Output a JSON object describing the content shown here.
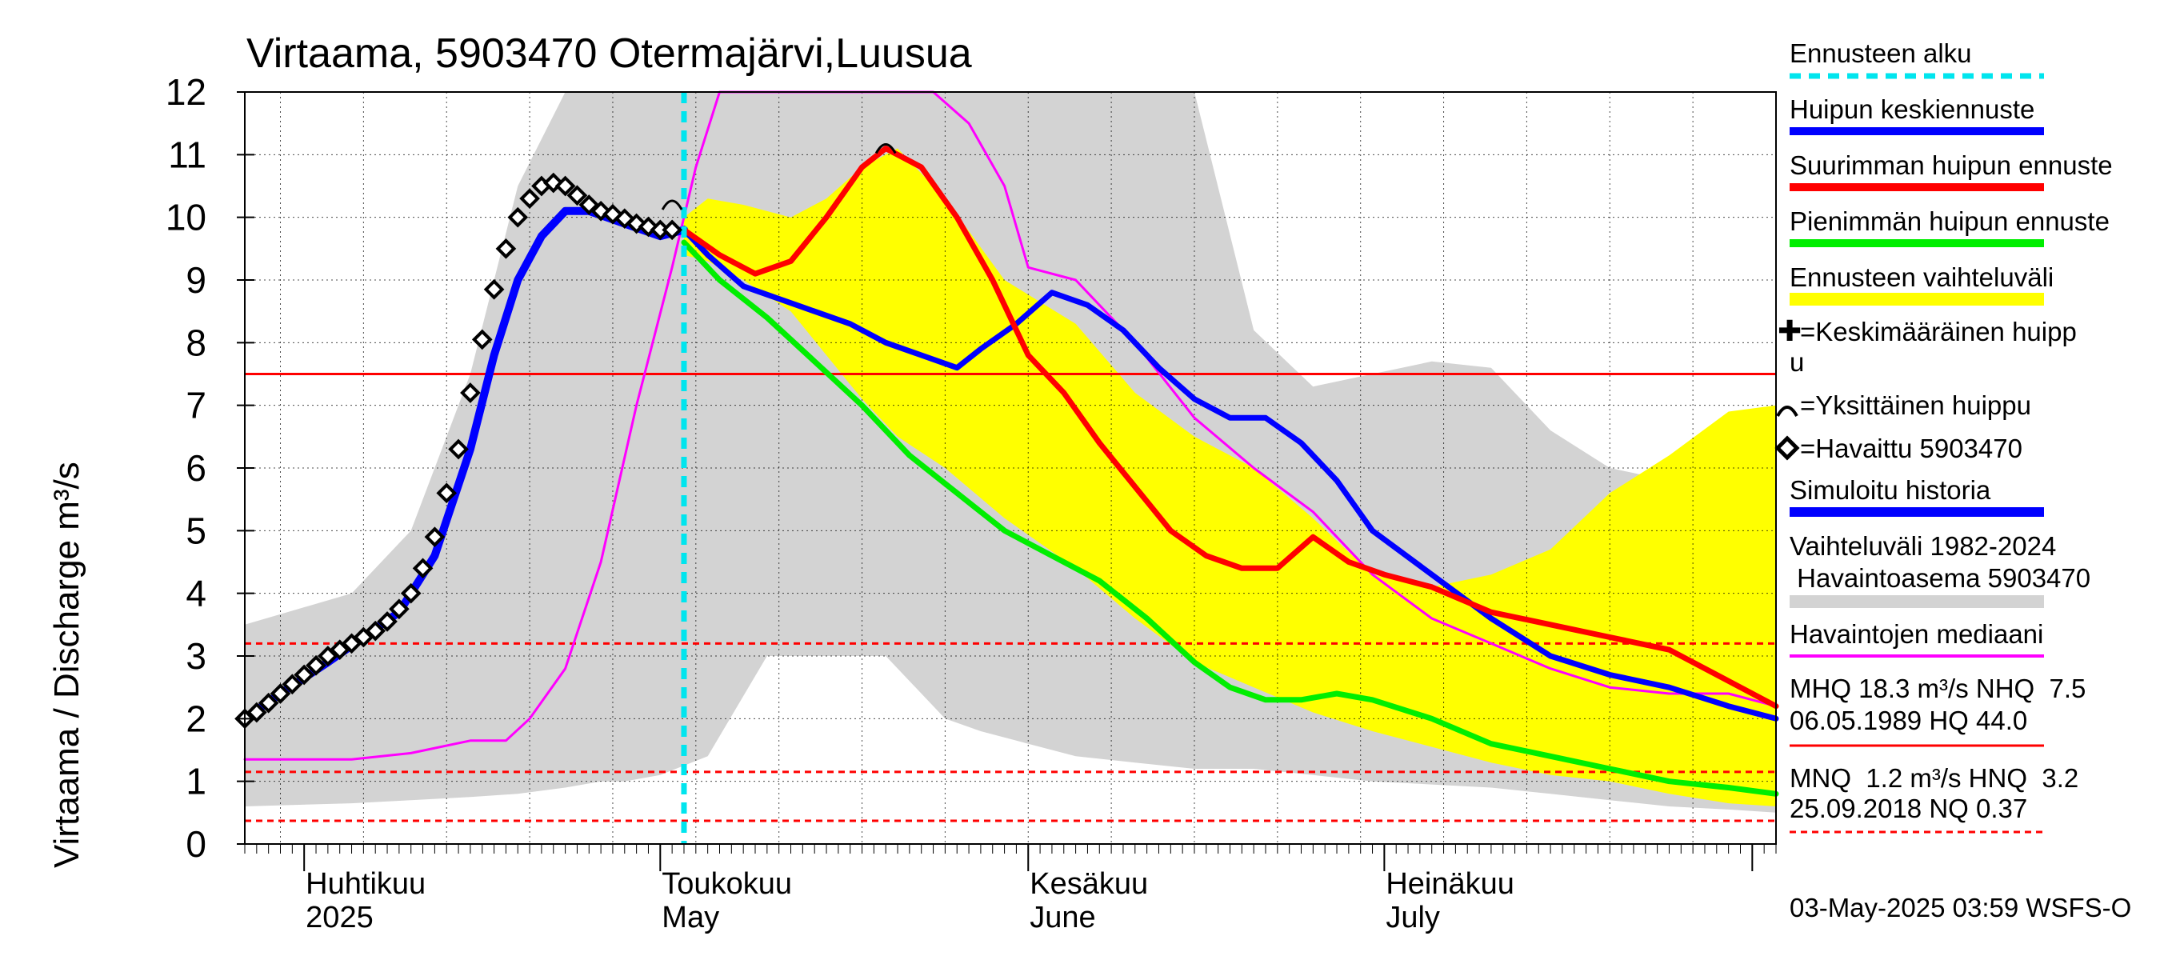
{
  "chart_data": {
    "type": "line",
    "title": "Virtaama, 5903470 Otermajärvi,Luusua",
    "ylabel": "Virtaama / Discharge    m³/s",
    "ylim": [
      0,
      12
    ],
    "yticks": [
      0,
      1,
      2,
      3,
      4,
      5,
      6,
      7,
      8,
      9,
      10,
      11,
      12
    ],
    "xlim": [
      "2025-03-27",
      "2025-08-03"
    ],
    "x_tick_labels": [
      {
        "date": "2025-04-01",
        "label1": "Huhtikuu",
        "label2": "2025"
      },
      {
        "date": "2025-05-01",
        "label1": "Toukokuu",
        "label2": "May"
      },
      {
        "date": "2025-06-01",
        "label1": "Kesäkuu",
        "label2": "June"
      },
      {
        "date": "2025-07-01",
        "label1": "Heinäkuu",
        "label2": "July"
      }
    ],
    "grid": true,
    "forecast_start": "2025-05-03",
    "reference_lines": [
      {
        "name": "NHQ",
        "value": 7.5,
        "style": "solid",
        "color": "#ff0000"
      },
      {
        "name": "HNQ",
        "value": 3.2,
        "style": "dashed",
        "color": "#ff0000"
      },
      {
        "name": "NQ-line",
        "value": 1.15,
        "style": "dashed",
        "color": "#ff0000"
      },
      {
        "name": "NQ",
        "value": 0.37,
        "style": "dashed",
        "color": "#ff0000"
      }
    ],
    "series": [
      {
        "name": "Vaihteluväli 1982-2024",
        "role": "band",
        "color": "#d3d3d3",
        "x": [
          "2025-03-27",
          "2025-04-05",
          "2025-04-10",
          "2025-04-15",
          "2025-04-19",
          "2025-04-23",
          "2025-04-26",
          "2025-04-28",
          "2025-05-01",
          "2025-05-05",
          "2025-05-10",
          "2025-05-15",
          "2025-05-20",
          "2025-05-25",
          "2025-05-28",
          "2025-06-01",
          "2025-06-05",
          "2025-06-10",
          "2025-06-15",
          "2025-06-20",
          "2025-06-25",
          "2025-06-30",
          "2025-07-05",
          "2025-07-10",
          "2025-07-15",
          "2025-07-20",
          "2025-07-25",
          "2025-07-30",
          "2025-08-03"
        ],
        "upper": [
          3.5,
          4.0,
          5.0,
          7.5,
          10.5,
          12,
          12,
          12,
          12,
          12,
          12,
          12,
          12,
          12,
          12,
          12,
          12,
          12,
          12,
          8.2,
          7.3,
          7.5,
          7.7,
          7.6,
          6.6,
          6.0,
          5.8,
          6.5,
          6.8
        ],
        "lower": [
          0.6,
          0.65,
          0.7,
          0.75,
          0.8,
          0.9,
          1.0,
          1.0,
          1.1,
          1.4,
          3.0,
          3.0,
          3.0,
          2.0,
          1.8,
          1.6,
          1.4,
          1.3,
          1.2,
          1.2,
          1.1,
          1.0,
          0.95,
          0.9,
          0.8,
          0.7,
          0.6,
          0.55,
          0.5
        ]
      },
      {
        "name": "Ennusteen vaihteluväli",
        "role": "band",
        "color": "#ffff00",
        "x": [
          "2025-05-03",
          "2025-05-05",
          "2025-05-08",
          "2025-05-12",
          "2025-05-15",
          "2025-05-18",
          "2025-05-21",
          "2025-05-25",
          "2025-05-30",
          "2025-06-05",
          "2025-06-10",
          "2025-06-15",
          "2025-06-20",
          "2025-06-25",
          "2025-06-30",
          "2025-07-05",
          "2025-07-10",
          "2025-07-15",
          "2025-07-20",
          "2025-07-25",
          "2025-07-30",
          "2025-08-03"
        ],
        "upper": [
          10.0,
          10.3,
          10.2,
          10.0,
          10.3,
          10.8,
          11.1,
          10.3,
          9.0,
          8.3,
          7.2,
          6.5,
          6.0,
          5.2,
          4.3,
          4.1,
          4.3,
          4.7,
          5.6,
          6.2,
          6.9,
          7.0
        ],
        "lower": [
          9.4,
          9.3,
          9.0,
          8.5,
          7.8,
          7.1,
          6.5,
          6.0,
          5.2,
          4.4,
          3.6,
          2.9,
          2.5,
          2.1,
          1.8,
          1.55,
          1.3,
          1.1,
          1.0,
          0.8,
          0.65,
          0.6
        ]
      },
      {
        "name": "Havaintojen mediaani",
        "role": "line",
        "color": "#ff00ff",
        "width": 3,
        "x": [
          "2025-03-27",
          "2025-04-05",
          "2025-04-10",
          "2025-04-15",
          "2025-04-18",
          "2025-04-20",
          "2025-04-23",
          "2025-04-26",
          "2025-04-29",
          "2025-05-02",
          "2025-05-04",
          "2025-05-06",
          "2025-05-08",
          "2025-05-10",
          "2025-05-12",
          "2025-05-15",
          "2025-05-20",
          "2025-05-24",
          "2025-05-27",
          "2025-05-30",
          "2025-06-01",
          "2025-06-05",
          "2025-06-10",
          "2025-06-15",
          "2025-06-20",
          "2025-06-25",
          "2025-06-30",
          "2025-07-05",
          "2025-07-10",
          "2025-07-15",
          "2025-07-20",
          "2025-07-25",
          "2025-07-30",
          "2025-08-03"
        ],
        "y": [
          1.35,
          1.35,
          1.45,
          1.65,
          1.65,
          2.0,
          2.8,
          4.5,
          7.0,
          9.2,
          10.8,
          12,
          12,
          12,
          12,
          12,
          12,
          12,
          11.5,
          10.5,
          9.2,
          9.0,
          8.0,
          6.8,
          6.0,
          5.3,
          4.3,
          3.6,
          3.2,
          2.8,
          2.5,
          2.4,
          2.4,
          2.2
        ]
      },
      {
        "name": "Simuloitu historia",
        "role": "line",
        "color": "#0000ff",
        "width": 10,
        "x": [
          "2025-03-27",
          "2025-03-30",
          "2025-04-03",
          "2025-04-06",
          "2025-04-09",
          "2025-04-12",
          "2025-04-15",
          "2025-04-17",
          "2025-04-19",
          "2025-04-21",
          "2025-04-23",
          "2025-04-25",
          "2025-04-28",
          "2025-05-01",
          "2025-05-03"
        ],
        "y": [
          2.0,
          2.4,
          2.9,
          3.3,
          3.7,
          4.6,
          6.3,
          7.8,
          9.0,
          9.7,
          10.1,
          10.1,
          9.9,
          9.7,
          9.8
        ]
      },
      {
        "name": "Huipun keskiennuste",
        "role": "line",
        "color": "#0000ff",
        "width": 7,
        "x": [
          "2025-05-03",
          "2025-05-05",
          "2025-05-08",
          "2025-05-11",
          "2025-05-14",
          "2025-05-17",
          "2025-05-20",
          "2025-05-23",
          "2025-05-26",
          "2025-05-28",
          "2025-05-31",
          "2025-06-03",
          "2025-06-06",
          "2025-06-09",
          "2025-06-12",
          "2025-06-15",
          "2025-06-18",
          "2025-06-21",
          "2025-06-24",
          "2025-06-27",
          "2025-06-30",
          "2025-07-05",
          "2025-07-10",
          "2025-07-15",
          "2025-07-20",
          "2025-07-25",
          "2025-07-30",
          "2025-08-03"
        ],
        "y": [
          9.8,
          9.4,
          8.9,
          8.7,
          8.5,
          8.3,
          8.0,
          7.8,
          7.6,
          7.9,
          8.3,
          8.8,
          8.6,
          8.2,
          7.6,
          7.1,
          6.8,
          6.8,
          6.4,
          5.8,
          5.0,
          4.3,
          3.6,
          3.0,
          2.7,
          2.5,
          2.2,
          2.0
        ]
      },
      {
        "name": "Suurimman huipun ennuste",
        "role": "line",
        "color": "#ff0000",
        "width": 7,
        "x": [
          "2025-05-03",
          "2025-05-06",
          "2025-05-09",
          "2025-05-12",
          "2025-05-15",
          "2025-05-18",
          "2025-05-20",
          "2025-05-23",
          "2025-05-26",
          "2025-05-29",
          "2025-06-01",
          "2025-06-04",
          "2025-06-07",
          "2025-06-10",
          "2025-06-13",
          "2025-06-16",
          "2025-06-19",
          "2025-06-22",
          "2025-06-25",
          "2025-06-28",
          "2025-07-01",
          "2025-07-05",
          "2025-07-10",
          "2025-07-15",
          "2025-07-20",
          "2025-07-25",
          "2025-07-30",
          "2025-08-03"
        ],
        "y": [
          9.8,
          9.4,
          9.1,
          9.3,
          10.0,
          10.8,
          11.1,
          10.8,
          10.0,
          9.0,
          7.8,
          7.2,
          6.4,
          5.7,
          5.0,
          4.6,
          4.4,
          4.4,
          4.9,
          4.5,
          4.3,
          4.1,
          3.7,
          3.5,
          3.3,
          3.1,
          2.6,
          2.2
        ]
      },
      {
        "name": "Pienimmän huipun ennuste",
        "role": "line",
        "color": "#00ee00",
        "width": 7,
        "x": [
          "2025-05-03",
          "2025-05-06",
          "2025-05-10",
          "2025-05-14",
          "2025-05-18",
          "2025-05-22",
          "2025-05-26",
          "2025-05-30",
          "2025-06-03",
          "2025-06-07",
          "2025-06-11",
          "2025-06-15",
          "2025-06-18",
          "2025-06-21",
          "2025-06-24",
          "2025-06-27",
          "2025-06-30",
          "2025-07-05",
          "2025-07-10",
          "2025-07-15",
          "2025-07-20",
          "2025-07-25",
          "2025-07-30",
          "2025-08-03"
        ],
        "y": [
          9.6,
          9.0,
          8.4,
          7.7,
          7.0,
          6.2,
          5.6,
          5.0,
          4.6,
          4.2,
          3.6,
          2.9,
          2.5,
          2.3,
          2.3,
          2.4,
          2.3,
          2.0,
          1.6,
          1.4,
          1.2,
          1.0,
          0.9,
          0.8
        ]
      },
      {
        "name": "Havaittu 5903470",
        "role": "markers",
        "color": "#000000",
        "x": [
          "2025-03-27",
          "2025-03-28",
          "2025-03-29",
          "2025-03-30",
          "2025-03-31",
          "2025-04-01",
          "2025-04-02",
          "2025-04-03",
          "2025-04-04",
          "2025-04-05",
          "2025-04-06",
          "2025-04-07",
          "2025-04-08",
          "2025-04-09",
          "2025-04-10",
          "2025-04-11",
          "2025-04-12",
          "2025-04-13",
          "2025-04-14",
          "2025-04-15",
          "2025-04-16",
          "2025-04-17",
          "2025-04-18",
          "2025-04-19",
          "2025-04-20",
          "2025-04-21",
          "2025-04-22",
          "2025-04-23",
          "2025-04-24",
          "2025-04-25",
          "2025-04-26",
          "2025-04-27",
          "2025-04-28",
          "2025-04-29",
          "2025-04-30",
          "2025-05-01",
          "2025-05-02"
        ],
        "y": [
          2.0,
          2.1,
          2.25,
          2.4,
          2.55,
          2.7,
          2.85,
          3.0,
          3.1,
          3.2,
          3.3,
          3.4,
          3.55,
          3.75,
          4.0,
          4.4,
          4.9,
          5.6,
          6.3,
          7.2,
          8.05,
          8.85,
          9.5,
          10.0,
          10.3,
          10.5,
          10.55,
          10.5,
          10.35,
          10.2,
          10.1,
          10.05,
          9.98,
          9.9,
          9.85,
          9.8,
          9.8
        ]
      }
    ],
    "markers": [
      {
        "name": "Yksittäinen huippu",
        "date": "2025-05-20",
        "value": 11.1
      },
      {
        "name": "Yksittäinen huippu",
        "date": "2025-05-02",
        "value": 10.2
      }
    ]
  },
  "legend": {
    "items": [
      {
        "label": "Ennusteen alku",
        "swatch": "dashed",
        "color": "#00e5ee"
      },
      {
        "label": "Huipun keskiennuste",
        "swatch": "line",
        "color": "#0000ff"
      },
      {
        "label": "Suurimman huipun ennuste",
        "swatch": "line",
        "color": "#ff0000"
      },
      {
        "label": "Pienimmän huipun ennuste",
        "swatch": "line",
        "color": "#00ee00"
      },
      {
        "label": "Ennusteen vaihteluväli",
        "swatch": "band",
        "color": "#ffff00"
      }
    ],
    "mean_peak_l1": "=Keskimääräinen huipp",
    "mean_peak_l2": "u",
    "single_peak": "=Yksittäinen huippu",
    "observed": "=Havaittu 5903470",
    "simulated": "Simuloitu historia",
    "range_l1": "Vaihteluväli 1982-2024",
    "range_l2": " Havaintoasema 5903470",
    "median": "Havaintojen mediaani",
    "stats1_l1": "MHQ 18.3 m³/s NHQ  7.5",
    "stats1_l2": "06.05.1989 HQ 44.0",
    "stats2_l1": "MNQ  1.2 m³/s HNQ  3.2",
    "stats2_l2": "25.09.2018 NQ 0.37"
  },
  "footer": "03-May-2025 03:59 WSFS-O",
  "colors": {
    "range_band": "#d3d3d3",
    "forecast_band": "#ffff00",
    "median": "#ff00ff",
    "mean": "#0000ff",
    "max": "#ff0000",
    "min": "#00ee00",
    "forecast_start": "#00e5ee"
  }
}
